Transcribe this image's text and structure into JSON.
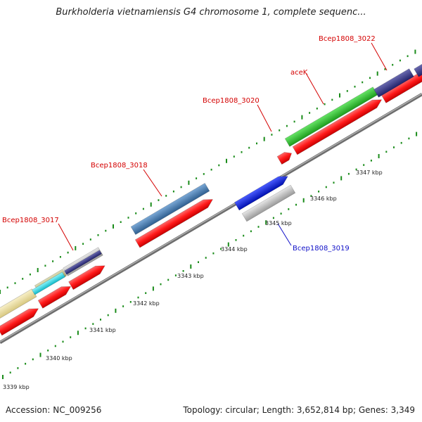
{
  "title": "Burkholderia vietnamiensis G4 chromosome 1, complete sequenc...",
  "footer": {
    "accession": "Accession: NC_009256",
    "summary": "Topology: circular; Length: 3,652,814 bp; Genes: 3,349"
  },
  "kbp_ticks": [
    "3339 kbp",
    "3340 kbp",
    "3341 kbp",
    "3342 kbp",
    "3343 kbp",
    "3344 kbp",
    "3345 kbp",
    "3346 kbp",
    "3347 kbp"
  ],
  "gene_labels": [
    {
      "name": "Bcep1808_3017",
      "color": "#d40000"
    },
    {
      "name": "Bcep1808_3018",
      "color": "#d40000"
    },
    {
      "name": "Bcep1808_3019",
      "color": "#1010c8"
    },
    {
      "name": "Bcep1808_3020",
      "color": "#d40000"
    },
    {
      "name": "aceK",
      "color": "#d40000"
    },
    {
      "name": "Bcep1808_3022",
      "color": "#d40000"
    }
  ],
  "colors": {
    "cds": "#ff1a1a",
    "gene_blue": "#0a1fe6",
    "gene_steel": "#4a7fb2",
    "gene_green": "#33cc33",
    "gene_navy": "#3a3a8a",
    "gene_cyan": "#22e6f0",
    "gene_khaki": "#c8c890",
    "gene_beige": "#ede2a0",
    "gene_gray": "#bbbbbb",
    "backbone": "#888888",
    "tick_green": "#1a8c1a"
  }
}
